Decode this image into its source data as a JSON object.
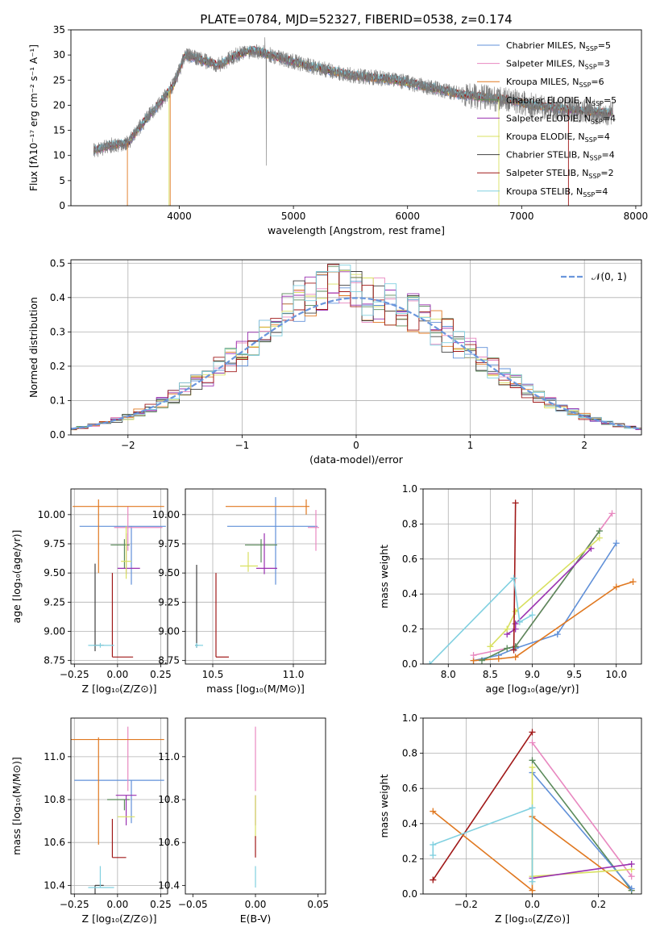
{
  "title": "PLATE=0784, MJD=52327, FIBERID=0538, z=0.174",
  "colors": {
    "c_miles": "#6090d8",
    "s_miles": "#e888c0",
    "k_miles": "#e07820",
    "c_elodie": "#5a8a5a",
    "s_elodie": "#9a30b0",
    "k_elodie": "#d8e060",
    "c_stelib": "#404040",
    "s_stelib": "#a01818",
    "k_stelib": "#80d0e0",
    "normal": "#6a96dc"
  },
  "chart_data": [
    {
      "id": "spectrum",
      "type": "line",
      "xlabel": "wavelength [Angstrom, rest frame]",
      "ylabel": "Flux [fλ10⁻¹⁷ erg cm⁻² s⁻¹ A⁻¹]",
      "xlim": [
        3050,
        8050
      ],
      "ylim": [
        0,
        35
      ],
      "xticks": [
        "4000",
        "5000",
        "6000",
        "7000",
        "8000"
      ],
      "yticks": [
        "0",
        "5",
        "10",
        "15",
        "20",
        "25",
        "30",
        "35"
      ],
      "legend": "top-right",
      "data_wavelength": [
        3250,
        3400,
        3550,
        3700,
        3850,
        3950,
        4050,
        4200,
        4350,
        4500,
        4650,
        4800,
        4950,
        5100,
        5300,
        5500,
        5700,
        5900,
        6100,
        6300,
        6500,
        6700,
        6900,
        7100,
        7300,
        7500,
        7700,
        7800
      ],
      "data_flux": [
        11,
        12,
        12.5,
        17,
        21,
        24,
        30,
        29,
        28,
        30,
        31,
        30,
        29,
        28,
        27,
        26,
        25.5,
        25,
        24,
        23,
        22,
        21.5,
        21,
        20,
        19.5,
        19,
        18.5,
        18.5
      ],
      "series": [
        {
          "key": "c_miles",
          "label": "Chabrier MILES, N",
          "sub": "SSP",
          "eq": "=5"
        },
        {
          "key": "s_miles",
          "label": "Salpeter MILES, N",
          "sub": "SSP",
          "eq": "=3"
        },
        {
          "key": "k_miles",
          "label": "Kroupa MILES, N",
          "sub": "SSP",
          "eq": "=6"
        },
        {
          "key": "c_elodie",
          "label": "Chabrier ELODIE, N",
          "sub": "SSP",
          "eq": "=5"
        },
        {
          "key": "s_elodie",
          "label": "Salpeter ELODIE, N",
          "sub": "SSP",
          "eq": "=4"
        },
        {
          "key": "k_elodie",
          "label": "Kroupa ELODIE, N",
          "sub": "SSP",
          "eq": "=4"
        },
        {
          "key": "c_stelib",
          "label": "Chabrier STELIB, N",
          "sub": "SSP",
          "eq": "=4"
        },
        {
          "key": "s_stelib",
          "label": "Salpeter STELIB, N",
          "sub": "SSP",
          "eq": "=2"
        },
        {
          "key": "k_stelib",
          "label": "Kroupa STELIB, N",
          "sub": "SSP",
          "eq": "=4"
        }
      ]
    },
    {
      "id": "residuals",
      "type": "histogram",
      "xlabel": "(data-model)/error",
      "ylabel": "Normed distribution",
      "xlim": [
        -2.5,
        2.5
      ],
      "ylim": [
        0,
        0.51
      ],
      "xticks": [
        "−2",
        "−1",
        "0",
        "1",
        "2"
      ],
      "yticks": [
        "0.0",
        "0.1",
        "0.2",
        "0.3",
        "0.4",
        "0.5"
      ],
      "grid": true,
      "legend": "top-right",
      "normal_label": "𝒩(0, 1)",
      "bin_width": 0.1
    },
    {
      "id": "age_vs_Z",
      "type": "errorbar",
      "xlabel": "Z [log₁₀(Z/Z⊙)]",
      "ylabel": "age  [log₁₀(age/yr)]",
      "xlim": [
        -0.27,
        0.29
      ],
      "ylim": [
        8.72,
        10.22
      ],
      "xticks": [
        "−0.25",
        "0.00",
        "0.25"
      ],
      "yticks": [
        "8.75",
        "9.00",
        "9.25",
        "9.50",
        "9.75",
        "10.00"
      ],
      "grid": true,
      "points": [
        {
          "key": "c_miles",
          "x": 0.08,
          "xerr": [
            0.3,
            0.2
          ],
          "y": 9.9,
          "yerr": [
            0.5,
            0.0
          ]
        },
        {
          "key": "s_miles",
          "x": 0.06,
          "xerr": [
            0.08,
            0.2
          ],
          "y": 9.89,
          "yerr": [
            0.2,
            0.18
          ]
        },
        {
          "key": "k_miles",
          "x": -0.11,
          "xerr": [
            0.15,
            0.38
          ],
          "y": 10.07,
          "yerr": [
            0.57,
            0.06
          ]
        },
        {
          "key": "c_elodie",
          "x": 0.04,
          "xerr": [
            0.08,
            0.03
          ],
          "y": 9.74,
          "yerr": [
            0.2,
            0.05
          ]
        },
        {
          "key": "s_elodie",
          "x": 0.05,
          "xerr": [
            0.05,
            0.08
          ],
          "y": 9.54,
          "yerr": [
            0.05,
            0.3
          ]
        },
        {
          "key": "k_elodie",
          "x": 0.05,
          "xerr": [
            0.03,
            0.03
          ],
          "y": 9.6,
          "yerr": [
            0.15,
            0.3
          ]
        },
        {
          "key": "c_stelib",
          "x": -0.13,
          "xerr": [
            0.01,
            0.05
          ],
          "y": 8.88,
          "yerr": [
            0.05,
            0.7
          ]
        },
        {
          "key": "s_stelib",
          "x": -0.03,
          "xerr": [
            0.0,
            0.12
          ],
          "y": 8.78,
          "yerr": [
            0.0,
            0.72
          ]
        },
        {
          "key": "k_stelib",
          "x": -0.1,
          "xerr": [
            0.07,
            0.08
          ],
          "y": 8.88,
          "yerr": [
            0.02,
            0.02
          ]
        }
      ]
    },
    {
      "id": "age_vs_mass",
      "type": "errorbar",
      "xlabel": "mass [log₁₀(M/M⊙)]",
      "ylabel": "",
      "xlim": [
        10.33,
        11.2
      ],
      "ylim": [
        8.72,
        10.22
      ],
      "xticks": [
        "10.5",
        "11.0"
      ],
      "yticks": [
        "8.75",
        "9.00",
        "9.25",
        "9.50",
        "9.75",
        "10.00"
      ],
      "grid": true,
      "points": [
        {
          "key": "c_miles",
          "x": 10.89,
          "xerr": [
            0.3,
            0.26
          ],
          "y": 9.9,
          "yerr": [
            0.5,
            0.25
          ]
        },
        {
          "key": "s_miles",
          "x": 11.14,
          "xerr": [
            0.05,
            0.02
          ],
          "y": 9.89,
          "yerr": [
            0.2,
            0.15
          ]
        },
        {
          "key": "k_miles",
          "x": 11.08,
          "xerr": [
            0.5,
            0.02
          ],
          "y": 10.07,
          "yerr": [
            0.07,
            0.06
          ]
        },
        {
          "key": "c_elodie",
          "x": 10.8,
          "xerr": [
            0.1,
            0.1
          ],
          "y": 9.74,
          "yerr": [
            0.15,
            0.05
          ]
        },
        {
          "key": "s_elodie",
          "x": 10.82,
          "xerr": [
            0.05,
            0.08
          ],
          "y": 9.54,
          "yerr": [
            0.05,
            0.3
          ]
        },
        {
          "key": "k_elodie",
          "x": 10.72,
          "xerr": [
            0.05,
            0.06
          ],
          "y": 9.56,
          "yerr": [
            0.05,
            0.12
          ]
        },
        {
          "key": "c_stelib",
          "x": 10.4,
          "xerr": [
            0.01,
            0.01
          ],
          "y": 8.88,
          "yerr": [
            0.02,
            0.69
          ]
        },
        {
          "key": "s_stelib",
          "x": 10.52,
          "xerr": [
            0.0,
            0.08
          ],
          "y": 8.78,
          "yerr": [
            0.0,
            0.72
          ]
        },
        {
          "key": "k_stelib",
          "x": 10.4,
          "xerr": [
            0.01,
            0.04
          ],
          "y": 8.88,
          "yerr": [
            0.02,
            0.02
          ]
        }
      ]
    },
    {
      "id": "weight_vs_age",
      "type": "line",
      "xlabel": "age  [log₁₀(age/yr)]",
      "ylabel": "mass weight",
      "xlim": [
        7.7,
        10.3
      ],
      "ylim": [
        0.0,
        1.0
      ],
      "xticks": [
        "8.0",
        "8.5",
        "9.0",
        "9.5",
        "10.0"
      ],
      "yticks": [
        "0.0",
        "0.2",
        "0.4",
        "0.6",
        "0.8",
        "1.0"
      ],
      "grid": true,
      "series": [
        {
          "key": "c_miles",
          "x": [
            8.3,
            8.6,
            8.8,
            9.3,
            10.0
          ],
          "y": [
            0.02,
            0.05,
            0.09,
            0.17,
            0.69
          ]
        },
        {
          "key": "k_miles",
          "x": [
            8.3,
            8.6,
            8.8,
            10.0,
            10.2
          ],
          "y": [
            0.02,
            0.03,
            0.04,
            0.44,
            0.47
          ]
        },
        {
          "key": "s_miles",
          "x": [
            8.3,
            8.8,
            9.95
          ],
          "y": [
            0.05,
            0.1,
            0.86
          ]
        },
        {
          "key": "c_elodie",
          "x": [
            8.4,
            8.7,
            8.8,
            9.8
          ],
          "y": [
            0.02,
            0.09,
            0.1,
            0.76
          ]
        },
        {
          "key": "s_elodie",
          "x": [
            8.7,
            8.8,
            8.8,
            9.7
          ],
          "y": [
            0.17,
            0.2,
            0.23,
            0.66
          ]
        },
        {
          "key": "k_elodie",
          "x": [
            8.5,
            8.7,
            8.8,
            9.8
          ],
          "y": [
            0.1,
            0.2,
            0.3,
            0.72
          ]
        },
        {
          "key": "s_stelib",
          "x": [
            8.78,
            8.8
          ],
          "y": [
            0.08,
            0.92
          ]
        },
        {
          "key": "k_stelib",
          "x": [
            7.78,
            8.78,
            8.85,
            9.0
          ],
          "y": [
            0.0,
            0.49,
            0.24,
            0.28
          ]
        }
      ]
    },
    {
      "id": "mass_vs_Z",
      "type": "errorbar",
      "xlabel": "Z [log₁₀(Z/Z⊙)]",
      "ylabel": "mass [log₁₀(M/M⊙)]",
      "xlim": [
        -0.27,
        0.29
      ],
      "ylim": [
        10.36,
        11.18
      ],
      "xticks": [
        "−0.25",
        "0.00",
        "0.25"
      ],
      "yticks": [
        "10.4",
        "10.6",
        "10.8",
        "11.0"
      ],
      "grid": true,
      "points": [
        {
          "key": "c_miles",
          "x": 0.08,
          "xerr": [
            0.33,
            0.19
          ],
          "y": 10.89,
          "yerr": [
            0.2,
            0.0
          ]
        },
        {
          "key": "s_miles",
          "x": 0.06,
          "xerr": [
            0.0,
            0.0
          ],
          "y": 11.14,
          "yerr": [
            0.3,
            0.0
          ]
        },
        {
          "key": "k_miles",
          "x": -0.11,
          "xerr": [
            0.16,
            0.38
          ],
          "y": 11.08,
          "yerr": [
            0.49,
            0.01
          ]
        },
        {
          "key": "c_elodie",
          "x": 0.04,
          "xerr": [
            0.1,
            0.03
          ],
          "y": 10.8,
          "yerr": [
            0.05,
            0.0
          ]
        },
        {
          "key": "s_elodie",
          "x": 0.05,
          "xerr": [
            0.06,
            0.06
          ],
          "y": 10.82,
          "yerr": [
            0.14,
            0.0
          ]
        },
        {
          "key": "k_elodie",
          "x": 0.05,
          "xerr": [
            0.05,
            0.05
          ],
          "y": 10.72,
          "yerr": [
            0.0,
            0.0
          ]
        },
        {
          "key": "c_stelib",
          "x": -0.13,
          "xerr": [
            0.0,
            0.05
          ],
          "y": 10.4,
          "yerr": [
            0.05,
            0.0
          ]
        },
        {
          "key": "s_stelib",
          "x": -0.03,
          "xerr": [
            0.0,
            0.08
          ],
          "y": 10.53,
          "yerr": [
            0.0,
            0.18
          ]
        },
        {
          "key": "k_stelib",
          "x": -0.1,
          "xerr": [
            0.07,
            0.08
          ],
          "y": 10.39,
          "yerr": [
            0.0,
            0.1
          ]
        }
      ]
    },
    {
      "id": "mass_vs_ebv",
      "type": "errorbar",
      "xlabel": "E(B-V)",
      "ylabel": "",
      "xlim": [
        -0.056,
        0.056
      ],
      "ylim": [
        10.36,
        11.18
      ],
      "xticks": [
        "−0.05",
        "0.00",
        "0.05"
      ],
      "yticks": [
        "10.4",
        "10.6",
        "10.8",
        "11.0"
      ],
      "grid": false,
      "points": [
        {
          "key": "s_miles",
          "x": 0.0,
          "y": 11.14,
          "yerr": [
            0.3,
            0.0
          ]
        },
        {
          "key": "s_elodie",
          "x": 0.0,
          "y": 10.82,
          "yerr": [
            0.14,
            0.0
          ]
        },
        {
          "key": "k_elodie",
          "x": 0.0,
          "y": 10.72,
          "yerr": [
            0.1,
            0.1
          ]
        },
        {
          "key": "s_stelib",
          "x": 0.0,
          "y": 10.53,
          "yerr": [
            0.0,
            0.1
          ]
        },
        {
          "key": "k_stelib",
          "x": 0.0,
          "y": 10.39,
          "yerr": [
            0.0,
            0.1
          ]
        }
      ]
    },
    {
      "id": "weight_vs_Z",
      "type": "line",
      "xlabel": "Z [log₁₀(Z/Z⊙)]",
      "ylabel": "mass weight",
      "xlim": [
        -0.33,
        0.33
      ],
      "ylim": [
        0.0,
        1.0
      ],
      "xticks": [
        "−0.2",
        "0.0",
        "0.2"
      ],
      "yticks": [
        "0.0",
        "0.2",
        "0.4",
        "0.6",
        "0.8",
        "1.0"
      ],
      "grid": true,
      "series": [
        {
          "key": "s_stelib",
          "x": [
            -0.3,
            0.0
          ],
          "y": [
            0.08,
            0.92
          ]
        },
        {
          "key": "k_miles",
          "x": [
            -0.3,
            0.0,
            0.0,
            0.3
          ],
          "y": [
            0.47,
            0.02,
            0.44,
            0.02
          ]
        },
        {
          "key": "s_miles",
          "x": [
            0.0,
            0.3
          ],
          "y": [
            0.86,
            0.1
          ]
        },
        {
          "key": "c_elodie",
          "x": [
            0.0,
            0.3
          ],
          "y": [
            0.76,
            0.02
          ]
        },
        {
          "key": "c_miles",
          "x": [
            0.0,
            0.3
          ],
          "y": [
            0.69,
            0.03
          ]
        },
        {
          "key": "k_elodie",
          "x": [
            0.0,
            0.0,
            0.3
          ],
          "y": [
            0.72,
            0.1,
            0.14
          ]
        },
        {
          "key": "s_elodie",
          "x": [
            0.0,
            0.3
          ],
          "y": [
            0.09,
            0.17
          ]
        },
        {
          "key": "k_stelib",
          "x": [
            -0.3,
            -0.3,
            0.0,
            0.0
          ],
          "y": [
            0.22,
            0.28,
            0.49,
            0.07
          ]
        }
      ]
    }
  ]
}
